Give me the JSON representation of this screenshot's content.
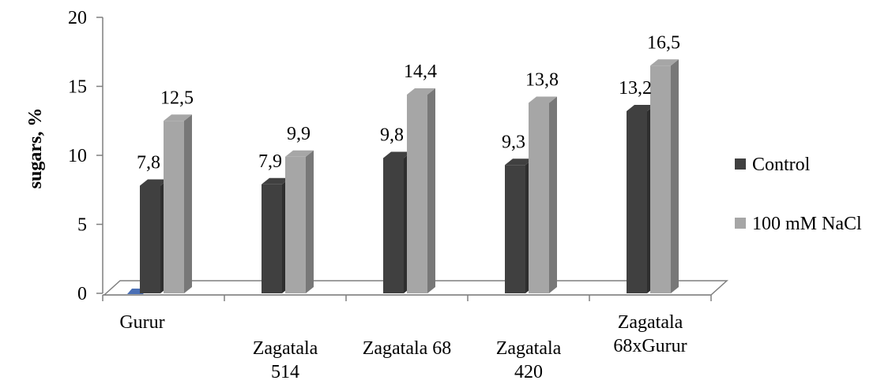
{
  "chart_data": {
    "type": "bar",
    "ylabel": "sugars, %",
    "ylim": [
      0,
      20
    ],
    "yticks": [
      "0",
      "5",
      "10",
      "15",
      "20"
    ],
    "categories": [
      [
        "Gurur"
      ],
      [
        "Zagatala",
        "514"
      ],
      [
        "Zagatala 68"
      ],
      [
        "Zagatala",
        "420"
      ],
      [
        "Zagatala",
        "68xGurur"
      ]
    ],
    "series": [
      {
        "name": "Control",
        "color": "#404040",
        "values": [
          7.8,
          7.9,
          9.8,
          9.3,
          13.2
        ],
        "labels": [
          "7,8",
          "7,9",
          "9,8",
          "9,3",
          "13,2"
        ]
      },
      {
        "name": "100 mM NaCl",
        "color": "#a6a6a6",
        "values": [
          12.5,
          9.9,
          14.4,
          13.8,
          16.5
        ],
        "labels": [
          "12,5",
          "9,9",
          "14,4",
          "13,8",
          "16,5"
        ]
      }
    ],
    "legend_position": "right",
    "style": "3d-column"
  }
}
